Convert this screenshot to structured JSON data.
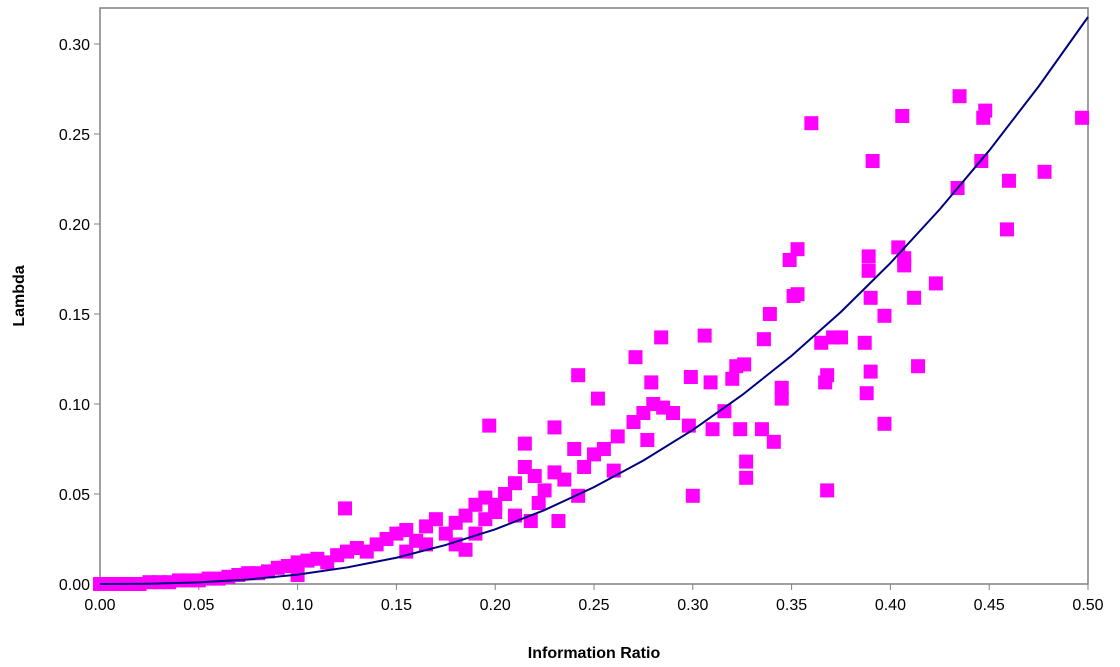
{
  "chart_data": {
    "type": "scatter",
    "x_label": "Information Ratio",
    "y_label": "Lambda",
    "color": "#ff00ff",
    "x": [
      0.0,
      0.005,
      0.01,
      0.015,
      0.02,
      0.025,
      0.03,
      0.035,
      0.04,
      0.045,
      0.05,
      0.055,
      0.06,
      0.065,
      0.07,
      0.075,
      0.08,
      0.085,
      0.09,
      0.095,
      0.1,
      0.1,
      0.105,
      0.11,
      0.115,
      0.12,
      0.125,
      0.13,
      0.135,
      0.14,
      0.145,
      0.15,
      0.155,
      0.155,
      0.16,
      0.165,
      0.165,
      0.17,
      0.175,
      0.18,
      0.18,
      0.185,
      0.185,
      0.19,
      0.19,
      0.195,
      0.195,
      0.2,
      0.2,
      0.205,
      0.21,
      0.21,
      0.215,
      0.218,
      0.22,
      0.222,
      0.225,
      0.23,
      0.235,
      0.245,
      0.25,
      0.255,
      0.26,
      0.262,
      0.27,
      0.275,
      0.28,
      0.285,
      0.29,
      0.124,
      0.197,
      0.215,
      0.242,
      0.252,
      0.23,
      0.232,
      0.24,
      0.242,
      0.271,
      0.284,
      0.279,
      0.277,
      0.299,
      0.3,
      0.306,
      0.309,
      0.31,
      0.298,
      0.316,
      0.32,
      0.322,
      0.324,
      0.326,
      0.327,
      0.327,
      0.335,
      0.336,
      0.339,
      0.341,
      0.345,
      0.345,
      0.349,
      0.351,
      0.353,
      0.353,
      0.36,
      0.365,
      0.367,
      0.368,
      0.368,
      0.371,
      0.375,
      0.387,
      0.388,
      0.389,
      0.389,
      0.39,
      0.39,
      0.391,
      0.397,
      0.397,
      0.404,
      0.406,
      0.407,
      0.407,
      0.412,
      0.414,
      0.423,
      0.434,
      0.435,
      0.446,
      0.447,
      0.448,
      0.459,
      0.46,
      0.478,
      0.497
    ],
    "values": [
      0,
      0,
      0,
      0,
      0,
      0.001,
      0.001,
      0.001,
      0.002,
      0.002,
      0.002,
      0.003,
      0.003,
      0.004,
      0.005,
      0.006,
      0.006,
      0.007,
      0.009,
      0.01,
      0.005,
      0.012,
      0.013,
      0.014,
      0.012,
      0.016,
      0.018,
      0.02,
      0.018,
      0.022,
      0.025,
      0.028,
      0.03,
      0.018,
      0.024,
      0.032,
      0.022,
      0.036,
      0.028,
      0.022,
      0.034,
      0.019,
      0.038,
      0.044,
      0.028,
      0.048,
      0.036,
      0.044,
      0.04,
      0.05,
      0.056,
      0.038,
      0.065,
      0.035,
      0.06,
      0.045,
      0.052,
      0.062,
      0.058,
      0.065,
      0.072,
      0.075,
      0.063,
      0.082,
      0.09,
      0.095,
      0.1,
      0.098,
      0.095,
      0.042,
      0.088,
      0.078,
      0.116,
      0.103,
      0.087,
      0.035,
      0.075,
      0.049,
      0.126,
      0.137,
      0.112,
      0.08,
      0.115,
      0.049,
      0.138,
      0.112,
      0.086,
      0.088,
      0.096,
      0.114,
      0.121,
      0.086,
      0.122,
      0.068,
      0.059,
      0.086,
      0.136,
      0.15,
      0.079,
      0.103,
      0.109,
      0.18,
      0.16,
      0.161,
      0.186,
      0.256,
      0.134,
      0.112,
      0.116,
      0.052,
      0.137,
      0.137,
      0.134,
      0.106,
      0.174,
      0.182,
      0.118,
      0.159,
      0.235,
      0.149,
      0.089,
      0.187,
      0.26,
      0.181,
      0.177,
      0.159,
      0.121,
      0.167,
      0.22,
      0.271,
      0.235,
      0.259,
      0.263,
      0.197,
      0.224,
      0.229,
      0.259
    ],
    "trend": {
      "color": "#000080",
      "x": [
        0,
        0.025,
        0.05,
        0.075,
        0.1,
        0.125,
        0.15,
        0.175,
        0.2,
        0.225,
        0.25,
        0.275,
        0.3,
        0.325,
        0.35,
        0.375,
        0.4,
        0.425,
        0.45,
        0.475,
        0.5
      ],
      "values": [
        0,
        0.00015,
        0.00089,
        0.0025,
        0.0052,
        0.0092,
        0.0146,
        0.0217,
        0.0304,
        0.0411,
        0.0538,
        0.0686,
        0.0856,
        0.105,
        0.1268,
        0.1512,
        0.1783,
        0.2082,
        0.2408,
        0.2764,
        0.315
      ]
    },
    "xlim": [
      0,
      0.5
    ],
    "ylim": [
      0,
      0.32
    ],
    "xticks": [
      {
        "value": 0,
        "label": "0.00"
      },
      {
        "value": 0.05,
        "label": "0.05"
      },
      {
        "value": 0.1,
        "label": "0.10"
      },
      {
        "value": 0.15,
        "label": "0.15"
      },
      {
        "value": 0.2,
        "label": "0.20"
      },
      {
        "value": 0.25,
        "label": "0.25"
      },
      {
        "value": 0.3,
        "label": "0.30"
      },
      {
        "value": 0.35,
        "label": "0.35"
      },
      {
        "value": 0.4,
        "label": "0.40"
      },
      {
        "value": 0.45,
        "label": "0.45"
      },
      {
        "value": 0.5,
        "label": "0.50"
      }
    ],
    "yticks": [
      {
        "value": 0,
        "label": "0.00"
      },
      {
        "value": 0.05,
        "label": "0.05"
      },
      {
        "value": 0.1,
        "label": "0.10"
      },
      {
        "value": 0.15,
        "label": "0.15"
      },
      {
        "value": 0.2,
        "label": "0.20"
      },
      {
        "value": 0.25,
        "label": "0.25"
      },
      {
        "value": 0.3,
        "label": "0.30"
      }
    ]
  }
}
